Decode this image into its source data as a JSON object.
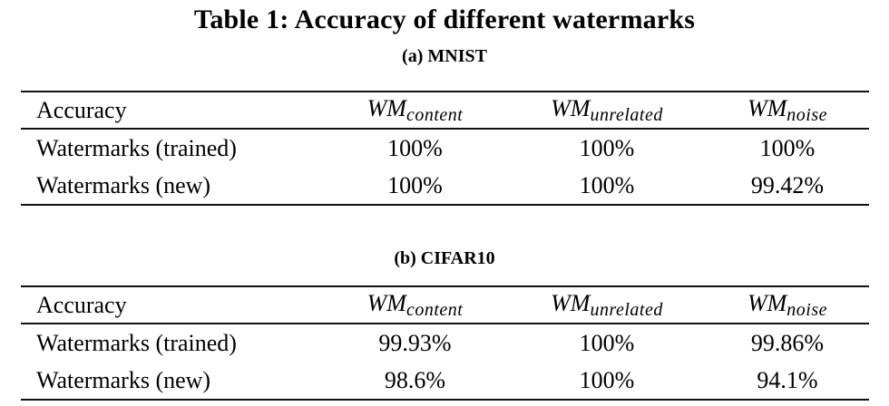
{
  "page": {
    "background_color": "#ffffff",
    "text_color": "#000000",
    "rule_color": "#111111"
  },
  "title": "Table 1: Accuracy of different watermarks",
  "tables": [
    {
      "caption": "(a) MNIST",
      "columns": {
        "label": "Accuracy",
        "wm": [
          {
            "base": "WM",
            "sub": "content"
          },
          {
            "base": "WM",
            "sub": "unrelated"
          },
          {
            "base": "WM",
            "sub": "noise"
          }
        ]
      },
      "rows": [
        {
          "label": "Watermarks (trained)",
          "values": [
            "100%",
            "100%",
            "100%"
          ]
        },
        {
          "label": "Watermarks (new)",
          "values": [
            "100%",
            "100%",
            "99.42%"
          ]
        }
      ]
    },
    {
      "caption": "(b) CIFAR10",
      "columns": {
        "label": "Accuracy",
        "wm": [
          {
            "base": "WM",
            "sub": "content"
          },
          {
            "base": "WM",
            "sub": "unrelated"
          },
          {
            "base": "WM",
            "sub": "noise"
          }
        ]
      },
      "rows": [
        {
          "label": "Watermarks (trained)",
          "values": [
            "99.93%",
            "100%",
            "99.86%"
          ]
        },
        {
          "label": "Watermarks (new)",
          "values": [
            "98.6%",
            "100%",
            "94.1%"
          ]
        }
      ]
    }
  ]
}
